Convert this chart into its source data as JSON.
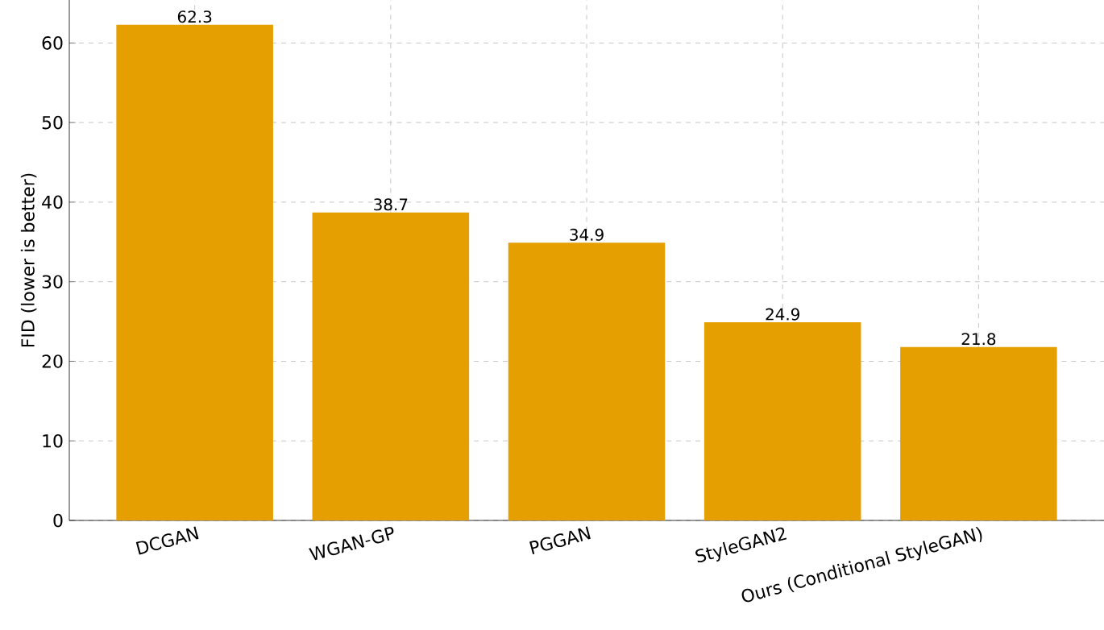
{
  "chart_data": {
    "type": "bar",
    "ylabel": "FID (lower is better)",
    "categories": [
      "DCGAN",
      "WGAN-GP",
      "PGGAN",
      "StyleGAN2",
      "Ours (Conditional StyleGAN)"
    ],
    "values": [
      62.3,
      38.7,
      34.9,
      24.9,
      21.8
    ],
    "color": "#e69f00",
    "ylim": [
      0,
      65.4
    ],
    "yticks": [
      0,
      10,
      20,
      30,
      40,
      50,
      60
    ],
    "grid": true,
    "data_labels": true
  }
}
